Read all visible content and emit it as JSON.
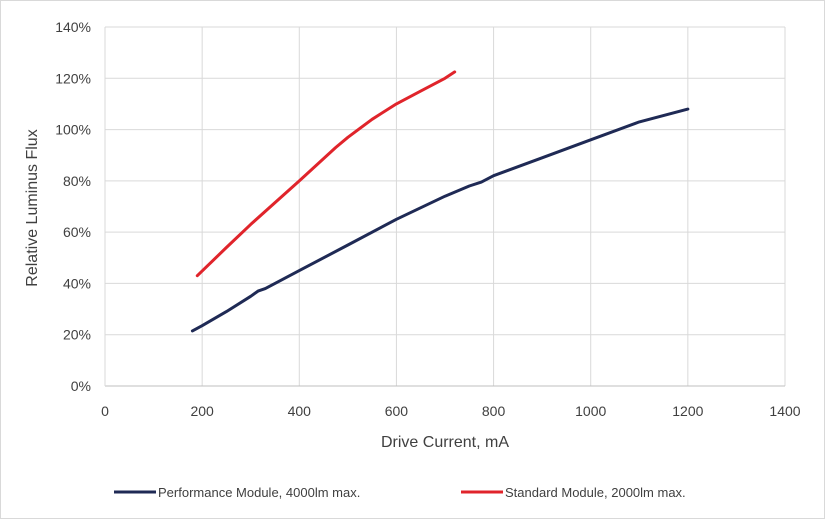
{
  "chart_data": {
    "type": "line",
    "title": "",
    "xlabel": "Drive Current, mA",
    "ylabel": "Relative Luminus Flux",
    "xlim": [
      0,
      1400
    ],
    "ylim": [
      0,
      140
    ],
    "x_ticks": [
      0,
      200,
      400,
      600,
      800,
      1000,
      1200,
      1400
    ],
    "x_tick_labels": [
      "0",
      "200",
      "400",
      "600",
      "800",
      "1000",
      "1200",
      "1400"
    ],
    "y_ticks": [
      0,
      20,
      40,
      60,
      80,
      100,
      120,
      140
    ],
    "y_tick_labels": [
      "0%",
      "20%",
      "40%",
      "60%",
      "80%",
      "100%",
      "120%",
      "140%"
    ],
    "y_unit": "%",
    "grid": true,
    "legend_position": "bottom",
    "series": [
      {
        "name": "Performance Module, 4000lm max.",
        "color": "#1f2a55",
        "points": [
          [
            180,
            21.5
          ],
          [
            200,
            23.5
          ],
          [
            250,
            29
          ],
          [
            300,
            35
          ],
          [
            315,
            37
          ],
          [
            330,
            38
          ],
          [
            400,
            45
          ],
          [
            500,
            55
          ],
          [
            600,
            65
          ],
          [
            700,
            74
          ],
          [
            750,
            78
          ],
          [
            775,
            79.5
          ],
          [
            800,
            82
          ],
          [
            900,
            89
          ],
          [
            1000,
            96
          ],
          [
            1100,
            103
          ],
          [
            1200,
            108
          ]
        ]
      },
      {
        "name": "Standard Module, 2000lm max.",
        "color": "#e0242b",
        "points": [
          [
            190,
            43
          ],
          [
            250,
            54
          ],
          [
            300,
            63
          ],
          [
            400,
            80
          ],
          [
            475,
            93
          ],
          [
            500,
            97
          ],
          [
            550,
            104
          ],
          [
            600,
            110
          ],
          [
            650,
            115
          ],
          [
            700,
            120
          ],
          [
            720,
            122.5
          ]
        ]
      }
    ]
  }
}
